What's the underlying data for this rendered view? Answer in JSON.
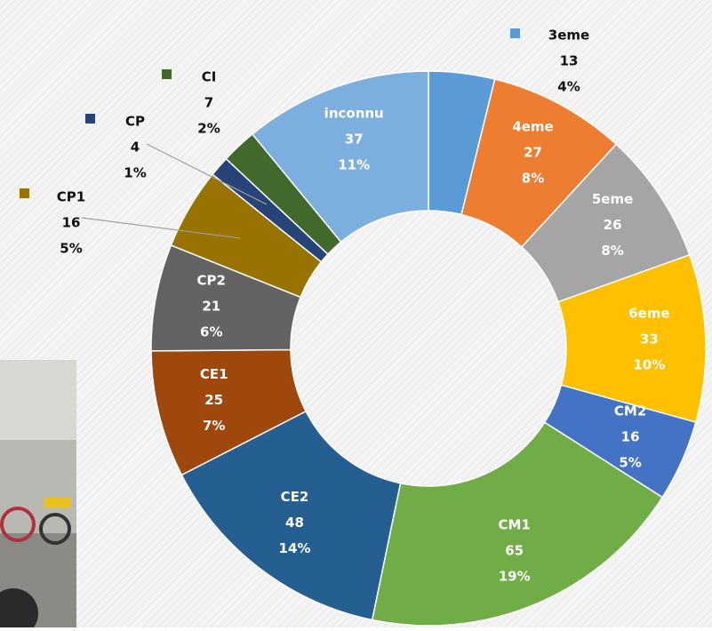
{
  "chart_data": {
    "type": "donut",
    "categories": [
      "3eme",
      "4eme",
      "5eme",
      "6eme",
      "CM2",
      "CM1",
      "CE2",
      "CE1",
      "CP2",
      "CP1",
      "CP",
      "CI",
      "inconnu"
    ],
    "values": [
      13,
      27,
      26,
      33,
      16,
      65,
      48,
      25,
      21,
      16,
      4,
      7,
      37
    ],
    "percent_labels": [
      "4%",
      "8%",
      "8%",
      "10%",
      "5%",
      "19%",
      "14%",
      "7%",
      "6%",
      "5%",
      "1%",
      "2%",
      "11%"
    ],
    "colors": [
      "#5b9bd5",
      "#ed7d31",
      "#a5a5a5",
      "#ffc000",
      "#4472c4",
      "#70ad47",
      "#255e91",
      "#9e480e",
      "#636363",
      "#997300",
      "#264478",
      "#43682b",
      "#7cafdd"
    ]
  }
}
